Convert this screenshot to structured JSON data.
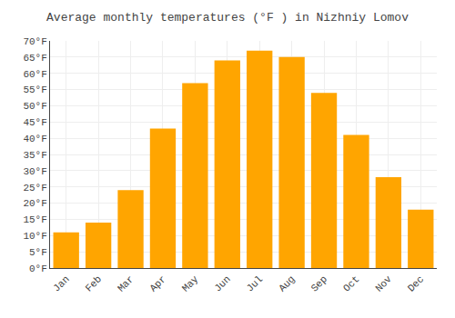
{
  "chart_data": {
    "type": "bar",
    "title": "Average monthly temperatures (°F ) in Nizhniy Lomov",
    "categories": [
      "Jan",
      "Feb",
      "Mar",
      "Apr",
      "May",
      "Jun",
      "Jul",
      "Aug",
      "Sep",
      "Oct",
      "Nov",
      "Dec"
    ],
    "values": [
      11,
      14,
      24,
      43,
      57,
      64,
      67,
      65,
      54,
      41,
      28,
      18
    ],
    "color": "#FFA500",
    "ylim": [
      0,
      70
    ],
    "yticks": [
      {
        "value": 0,
        "label": "0°F"
      },
      {
        "value": 5,
        "label": "5°F"
      },
      {
        "value": 10,
        "label": "10°F"
      },
      {
        "value": 15,
        "label": "15°F"
      },
      {
        "value": 20,
        "label": "20°F"
      },
      {
        "value": 25,
        "label": "25°F"
      },
      {
        "value": 30,
        "label": "30°F"
      },
      {
        "value": 35,
        "label": "35°F"
      },
      {
        "value": 40,
        "label": "40°F"
      },
      {
        "value": 45,
        "label": "45°F"
      },
      {
        "value": 50,
        "label": "50°F"
      },
      {
        "value": 55,
        "label": "55°F"
      },
      {
        "value": 60,
        "label": "60°F"
      },
      {
        "value": 65,
        "label": "65°F"
      },
      {
        "value": 70,
        "label": "70°F"
      }
    ],
    "grid": true
  }
}
